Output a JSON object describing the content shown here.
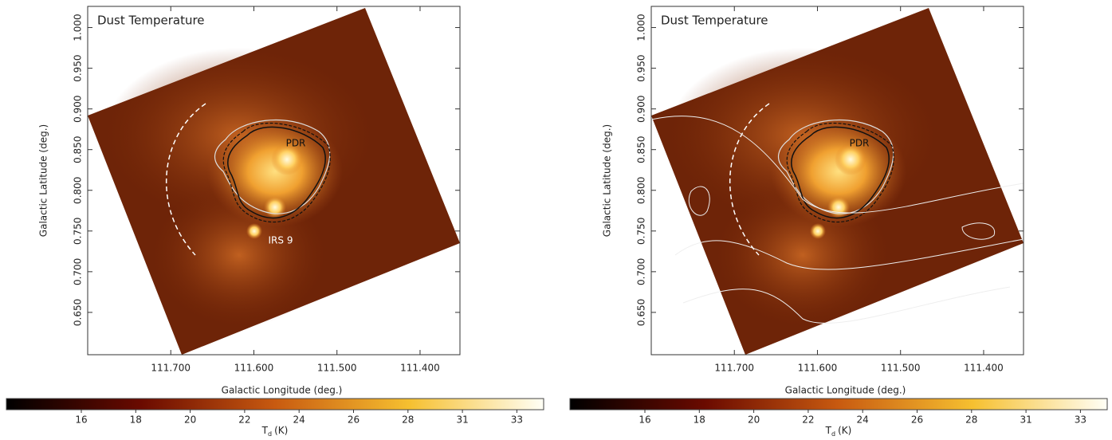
{
  "chart_data": [
    {
      "type": "image",
      "title": "Dust Temperature",
      "x_label": "Galactic Longitude (deg.)",
      "y_label": "Galactic Latitude (deg.)",
      "xlim": [
        111.8,
        111.352
      ],
      "ylim": [
        0.598,
        1.026
      ],
      "xticks": [
        {
          "value": 111.7,
          "label": "111.700"
        },
        {
          "value": 111.6,
          "label": "111.600"
        },
        {
          "value": 111.5,
          "label": "111.500"
        },
        {
          "value": 111.4,
          "label": "111.400"
        }
      ],
      "yticks": [
        {
          "value": 0.65,
          "label": "0.650"
        },
        {
          "value": 0.7,
          "label": "0.700"
        },
        {
          "value": 0.75,
          "label": "0.750"
        },
        {
          "value": 0.8,
          "label": "0.800"
        },
        {
          "value": 0.85,
          "label": "0.850"
        },
        {
          "value": 0.9,
          "label": "0.900"
        },
        {
          "value": 0.95,
          "label": "0.950"
        },
        {
          "value": 1.0,
          "label": "1.000"
        }
      ],
      "colorbar_ticks": [
        16,
        18,
        20,
        22,
        24,
        26,
        28,
        31,
        33
      ],
      "colorbar_label": {
        "symbol": "T",
        "subscript": "d",
        "unit": "(K)"
      },
      "annotations": [
        "PDR",
        "IRS 9"
      ]
    },
    {
      "type": "image",
      "title": "Dust Temperature",
      "x_label": "Galactic Longitude (deg.)",
      "y_label": "Galactic Latitude (deg.)",
      "xlim": [
        111.8,
        111.352
      ],
      "ylim": [
        0.598,
        1.026
      ],
      "xticks": [
        {
          "value": 111.7,
          "label": "111.700"
        },
        {
          "value": 111.6,
          "label": "111.600"
        },
        {
          "value": 111.5,
          "label": "111.500"
        },
        {
          "value": 111.4,
          "label": "111.400"
        }
      ],
      "yticks": [
        {
          "value": 0.65,
          "label": "0.650"
        },
        {
          "value": 0.7,
          "label": "0.700"
        },
        {
          "value": 0.75,
          "label": "0.750"
        },
        {
          "value": 0.8,
          "label": "0.800"
        },
        {
          "value": 0.85,
          "label": "0.850"
        },
        {
          "value": 0.9,
          "label": "0.900"
        },
        {
          "value": 0.95,
          "label": "0.950"
        },
        {
          "value": 1.0,
          "label": "1.000"
        }
      ],
      "colorbar_ticks": [
        16,
        18,
        20,
        22,
        24,
        26,
        28,
        31,
        33
      ],
      "colorbar_label": {
        "symbol": "T",
        "subscript": "d",
        "unit": "(K)"
      },
      "annotations": [
        "PDR"
      ]
    }
  ]
}
